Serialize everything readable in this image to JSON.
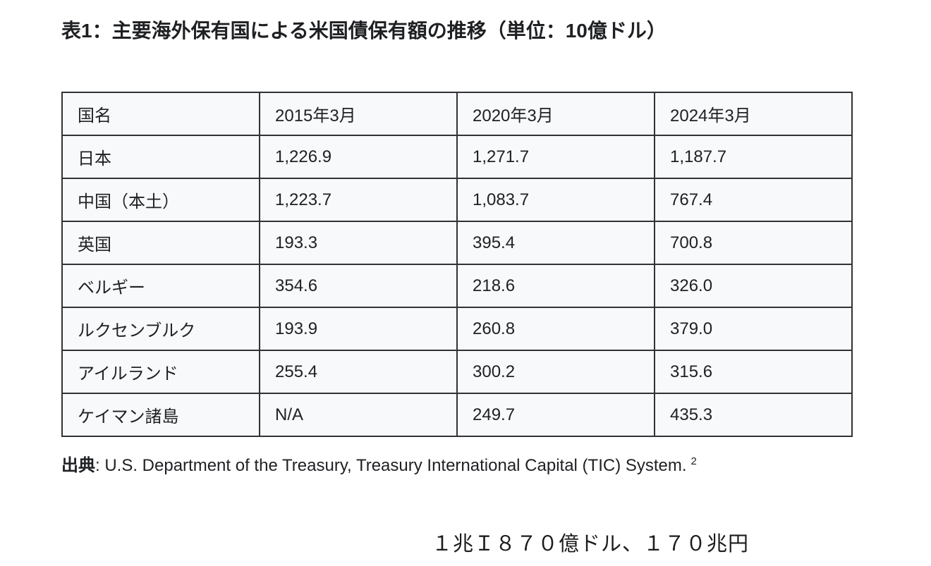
{
  "page": {
    "title": "表1：主要海外保有国による米国債保有額の推移（単位：10億ドル）"
  },
  "table": {
    "headers": [
      "国名",
      "2015年3月",
      "2020年3月",
      "2024年3月"
    ],
    "rows": [
      {
        "country": "日本",
        "values": [
          "1,226.9",
          "1,271.7",
          "1,187.7"
        ]
      },
      {
        "country": "中国（本土）",
        "values": [
          "1,223.7",
          "1,083.7",
          "767.4"
        ]
      },
      {
        "country": "英国",
        "values": [
          "193.3",
          "395.4",
          "700.8"
        ]
      },
      {
        "country": "ベルギー",
        "values": [
          "354.6",
          "218.6",
          "326.0"
        ]
      },
      {
        "country": "ルクセンブルク",
        "values": [
          "193.9",
          "260.8",
          "379.0"
        ]
      },
      {
        "country": "アイルランド",
        "values": [
          "255.4",
          "300.2",
          "315.6"
        ]
      },
      {
        "country": "ケイマン諸島",
        "values": [
          "N/A",
          "249.7",
          "435.3"
        ]
      }
    ]
  },
  "source": {
    "label": "出典",
    "text": ": U.S. Department of the Treasury, Treasury International Capital (TIC) System.",
    "footnote_ref": "2"
  },
  "annotation": "１兆Ｉ８７０億ドル、１７０兆円",
  "colors": {
    "page_background": "#ffffff",
    "cell_background": "#f8f9fa",
    "table_border": "#313235",
    "text": "#202124"
  }
}
